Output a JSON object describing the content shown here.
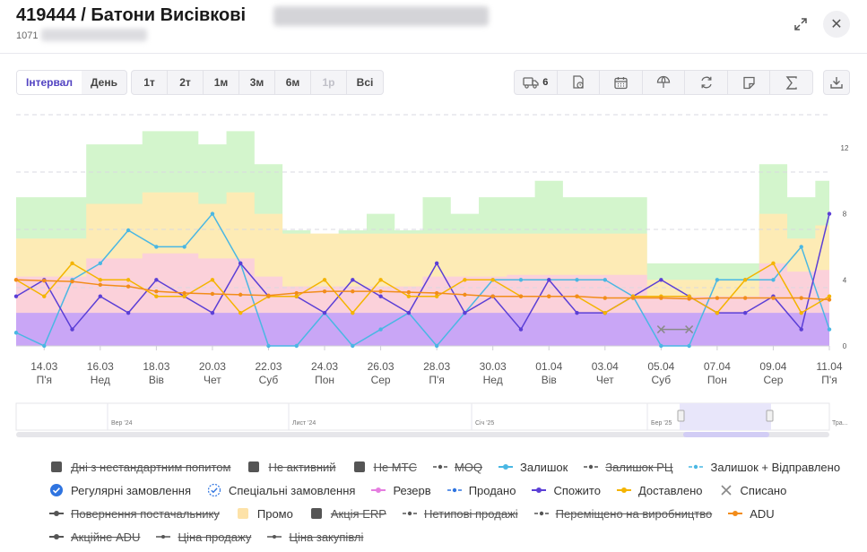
{
  "header": {
    "title": "419444 / Батони Висівкові",
    "subtitle": "1071"
  },
  "toolbar": {
    "mode_tabs": [
      "Інтервал",
      "День"
    ],
    "active_mode": "Інтервал",
    "ranges": [
      "1т",
      "2т",
      "1м",
      "3м",
      "6м",
      "1р",
      "Всі"
    ],
    "disabled_range": "1р",
    "delivery_count": "6",
    "tools": [
      "truck-icon",
      "calendar-clock-icon",
      "calendar-icon",
      "umbrella-icon",
      "refresh-icon",
      "note-icon",
      "sigma-icon"
    ]
  },
  "chart_data": {
    "type": "line",
    "y_ticks": [
      0,
      4,
      8,
      12
    ],
    "ylim": [
      0,
      14
    ],
    "x_labels": [
      {
        "date": "14.03",
        "day": "П'я"
      },
      {
        "date": "16.03",
        "day": "Нед"
      },
      {
        "date": "18.03",
        "day": "Вів"
      },
      {
        "date": "20.03",
        "day": "Чет"
      },
      {
        "date": "22.03",
        "day": "Суб"
      },
      {
        "date": "24.03",
        "day": "Пон"
      },
      {
        "date": "26.03",
        "day": "Сер"
      },
      {
        "date": "28.03",
        "day": "П'я"
      },
      {
        "date": "30.03",
        "day": "Нед"
      },
      {
        "date": "01.04",
        "day": "Вів"
      },
      {
        "date": "03.04",
        "day": "Чет"
      },
      {
        "date": "05.04",
        "day": "Суб"
      },
      {
        "date": "07.04",
        "day": "Пон"
      },
      {
        "date": "09.04",
        "day": "Сер"
      },
      {
        "date": "11.04",
        "day": "П'я"
      }
    ],
    "x": [
      "13.03",
      "14.03",
      "15.03",
      "16.03",
      "17.03",
      "18.03",
      "19.03",
      "20.03",
      "21.03",
      "22.03",
      "23.03",
      "24.03",
      "25.03",
      "26.03",
      "27.03",
      "28.03",
      "29.03",
      "30.03",
      "31.03",
      "01.04",
      "02.04",
      "03.04",
      "04.04",
      "05.04",
      "06.04",
      "07.04",
      "08.04",
      "09.04",
      "10.04",
      "11.04"
    ],
    "bands": {
      "purple": [
        2,
        2,
        2,
        2,
        2,
        2,
        2,
        2,
        2,
        2,
        2,
        2,
        2,
        2,
        2,
        2,
        2,
        2,
        2,
        2,
        2,
        2,
        2,
        2,
        2,
        2,
        2,
        2,
        2,
        2
      ],
      "pink": [
        4.2,
        4.2,
        4.2,
        5.3,
        5.3,
        5.6,
        5.6,
        5.3,
        5.3,
        4.2,
        3.6,
        3.6,
        3.6,
        3.6,
        3.6,
        4.2,
        4.2,
        4.2,
        4.3,
        4.3,
        4.3,
        4.3,
        4.3,
        3.0,
        3.0,
        3.0,
        3.0,
        5.0,
        4.5,
        4.6
      ],
      "yellow": [
        6.5,
        6.5,
        6.5,
        8.6,
        8.6,
        9.3,
        9.3,
        8.6,
        9.3,
        8.0,
        6.8,
        6.8,
        6.8,
        6.8,
        6.8,
        6.8,
        6.8,
        6.8,
        6.8,
        6.8,
        6.8,
        6.8,
        6.8,
        4.0,
        4.0,
        4.0,
        4.0,
        8.0,
        6.5,
        7.3
      ],
      "green": [
        9.0,
        9.0,
        9.0,
        12.2,
        12.2,
        13.0,
        13.0,
        12.2,
        13.0,
        11.0,
        7.0,
        5.9,
        7.0,
        8.0,
        7.0,
        9.0,
        8.0,
        9.0,
        9.0,
        10.0,
        9.0,
        9.0,
        9.0,
        5.0,
        5.0,
        5.0,
        5.0,
        11.0,
        9.0,
        10.0
      ]
    },
    "series": [
      {
        "name": "Залишок",
        "color": "#4ab7e3",
        "values": [
          0.8,
          0,
          4,
          5,
          7,
          6,
          6,
          8,
          5,
          0,
          0,
          2,
          0,
          1,
          2,
          0,
          2,
          4,
          4,
          4,
          4,
          4,
          3,
          0,
          0,
          4,
          4,
          4,
          6,
          1
        ]
      },
      {
        "name": "Спожито",
        "color": "#5b3fd6",
        "values": [
          3,
          4,
          1,
          3,
          2,
          4,
          3,
          2,
          5,
          3,
          3,
          2,
          4,
          3,
          2,
          5,
          2,
          3,
          1,
          4,
          2,
          2,
          3,
          4,
          3,
          2,
          2,
          3,
          1,
          8
        ]
      },
      {
        "name": "Доставлено",
        "color": "#f4b400",
        "values": [
          4,
          3,
          5,
          4,
          4,
          3,
          3,
          4,
          2,
          3,
          3,
          4,
          2,
          4,
          3,
          3,
          4,
          4,
          3,
          3,
          3,
          2,
          3,
          3,
          3,
          2,
          4,
          5,
          2,
          3
        ]
      },
      {
        "name": "ADU",
        "color": "#f28c1a",
        "values": [
          4.0,
          3.95,
          3.9,
          3.7,
          3.6,
          3.3,
          3.2,
          3.15,
          3.1,
          3.05,
          3.2,
          3.3,
          3.3,
          3.3,
          3.25,
          3.2,
          3.1,
          3.0,
          3.0,
          3.0,
          3.0,
          2.9,
          2.9,
          2.9,
          2.85,
          2.9,
          2.9,
          2.9,
          2.9,
          2.8
        ]
      }
    ],
    "written_off": {
      "name": "Списано",
      "from": "05.04",
      "to": "06.04",
      "value": 1
    }
  },
  "navigator": {
    "labels": [
      "Вер '24",
      "Лист '24",
      "Січ '25",
      "Бер '25",
      "Тра..."
    ]
  },
  "legend": {
    "rows": [
      [
        {
          "label": "Дні з нестандартним попитом",
          "symbol": "square",
          "color": "#555555",
          "off": true
        },
        {
          "label": "Не активний",
          "symbol": "square",
          "color": "#555555",
          "off": true
        },
        {
          "label": "Не МТС",
          "symbol": "square",
          "color": "#555555",
          "off": true
        },
        {
          "label": "MOQ",
          "symbol": "dash-dot",
          "color": "#555555",
          "off": true
        },
        {
          "label": "Залишок",
          "symbol": "line-dot",
          "color": "#4ab7e3",
          "off": false
        },
        {
          "label": "Залишок РЦ",
          "symbol": "dash-dot",
          "color": "#555555",
          "off": true
        },
        {
          "label": "Залишок + Відправлено",
          "symbol": "dash-dot",
          "color": "#4ab7e3",
          "off": false
        }
      ],
      [
        {
          "label": "Регулярні замовлення",
          "symbol": "check-badge",
          "color": "#2f74e0",
          "off": false
        },
        {
          "label": "Спеціальні замовлення",
          "symbol": "check-badge-outline",
          "color": "#2f74e0",
          "off": false
        },
        {
          "label": "Резерв",
          "symbol": "line-dot",
          "color": "#e57de0",
          "off": false
        },
        {
          "label": "Продано",
          "symbol": "dash-dot",
          "color": "#2f74e0",
          "off": false
        },
        {
          "label": "Спожито",
          "symbol": "line-dot",
          "color": "#5b3fd6",
          "off": false
        },
        {
          "label": "Доставлено",
          "symbol": "line-dot",
          "color": "#f4b400",
          "off": false
        },
        {
          "label": "Списано",
          "symbol": "cross",
          "color": "#888888",
          "off": false
        }
      ],
      [
        {
          "label": "Повернення постачальнику",
          "symbol": "line-dot",
          "color": "#555555",
          "off": true
        },
        {
          "label": "Промо",
          "symbol": "square",
          "color": "#fde2a8",
          "off": false
        },
        {
          "label": "Акція ERP",
          "symbol": "square",
          "color": "#555555",
          "off": true
        },
        {
          "label": "Нетипові продажі",
          "symbol": "dash-dot",
          "color": "#555555",
          "off": true
        },
        {
          "label": "Переміщено на виробництво",
          "symbol": "dash-dot",
          "color": "#555555",
          "off": true
        },
        {
          "label": "ADU",
          "symbol": "line-dot",
          "color": "#f28c1a",
          "off": false
        }
      ],
      [
        {
          "label": "Акційне ADU",
          "symbol": "line-dot",
          "color": "#555555",
          "off": true
        },
        {
          "label": "Ціна продажу",
          "symbol": "line",
          "color": "#555555",
          "off": true
        },
        {
          "label": "Ціна закупівлі",
          "symbol": "line",
          "color": "#555555",
          "off": true
        }
      ]
    ]
  }
}
